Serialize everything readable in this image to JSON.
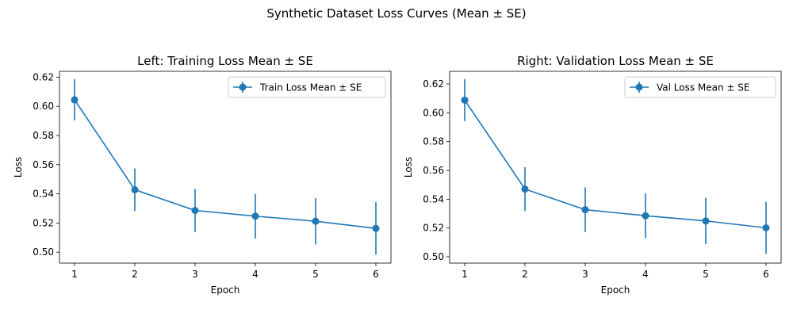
{
  "figure": {
    "title": "Synthetic Dataset Loss Curves (Mean ± SE)"
  },
  "colors": {
    "series": "#1f77b4",
    "axis": "#000000",
    "background": "#ffffff",
    "legend_border": "#cccccc"
  },
  "chart_data": [
    {
      "type": "line",
      "title": "Left: Training Loss Mean ± SE",
      "xlabel": "Epoch",
      "ylabel": "Loss",
      "x": [
        1,
        2,
        3,
        4,
        5,
        6
      ],
      "xticks": [
        "1",
        "2",
        "3",
        "4",
        "5",
        "6"
      ],
      "yticks": [
        "0.50",
        "0.52",
        "0.54",
        "0.56",
        "0.58",
        "0.60",
        "0.62"
      ],
      "ytick_values": [
        0.5,
        0.52,
        0.54,
        0.56,
        0.58,
        0.6,
        0.62
      ],
      "xlim": [
        0.75,
        6.25
      ],
      "ylim": [
        0.4925,
        0.624
      ],
      "grid": false,
      "legend_position": "upper right",
      "series": [
        {
          "name": "Train Loss Mean ± SE",
          "values": [
            0.6045,
            0.5428,
            0.5286,
            0.5247,
            0.5212,
            0.5163
          ],
          "se": [
            0.0141,
            0.0146,
            0.0148,
            0.0153,
            0.0159,
            0.018
          ]
        }
      ]
    },
    {
      "type": "line",
      "title": "Right: Validation Loss Mean ± SE",
      "xlabel": "Epoch",
      "ylabel": "Loss",
      "x": [
        1,
        2,
        3,
        4,
        5,
        6
      ],
      "xticks": [
        "1",
        "2",
        "3",
        "4",
        "5",
        "6"
      ],
      "yticks": [
        "0.50",
        "0.52",
        "0.54",
        "0.56",
        "0.58",
        "0.60",
        "0.62"
      ],
      "ytick_values": [
        0.5,
        0.52,
        0.54,
        0.56,
        0.58,
        0.6,
        0.62
      ],
      "xlim": [
        0.75,
        6.25
      ],
      "ylim": [
        0.4956,
        0.6288
      ],
      "grid": false,
      "legend_position": "upper right",
      "series": [
        {
          "name": "Val Loss Mean ± SE",
          "values": [
            0.6088,
            0.547,
            0.5327,
            0.5285,
            0.5249,
            0.5201
          ],
          "se": [
            0.0146,
            0.0152,
            0.0155,
            0.0155,
            0.016,
            0.0181
          ]
        }
      ]
    }
  ]
}
